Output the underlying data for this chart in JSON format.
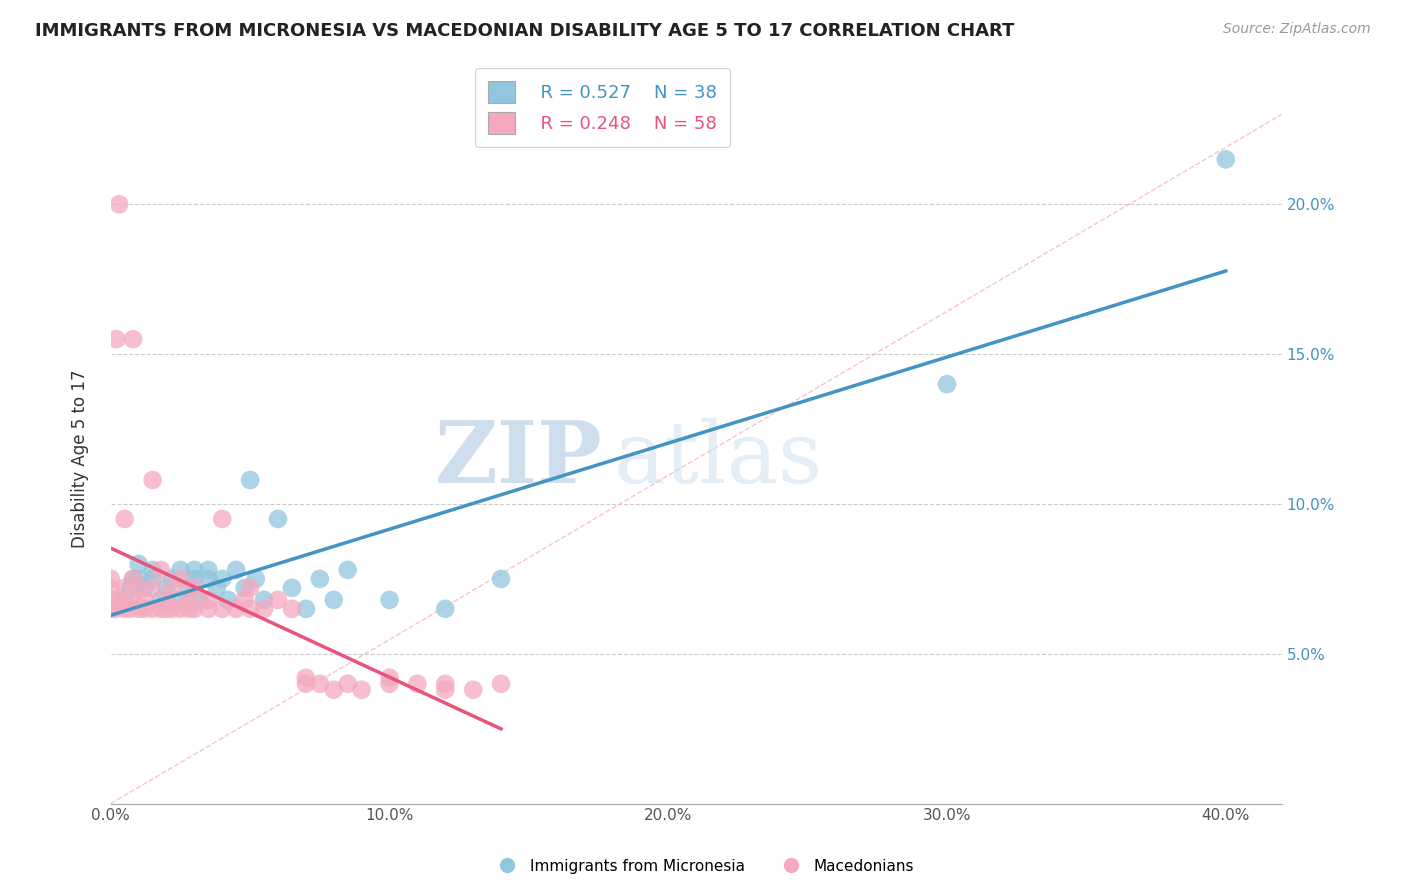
{
  "title": "IMMIGRANTS FROM MICRONESIA VS MACEDONIAN DISABILITY AGE 5 TO 17 CORRELATION CHART",
  "source": "Source: ZipAtlas.com",
  "ylabel": "Disability Age 5 to 17",
  "xlim": [
    0.0,
    0.42
  ],
  "ylim": [
    0.0,
    0.23
  ],
  "xticks": [
    0.0,
    0.1,
    0.2,
    0.3,
    0.4
  ],
  "xtick_labels": [
    "0.0%",
    "10.0%",
    "20.0%",
    "30.0%",
    "40.0%"
  ],
  "yticks": [
    0.0,
    0.05,
    0.1,
    0.15,
    0.2
  ],
  "ytick_labels_left": [
    "",
    "",
    "",
    "",
    ""
  ],
  "ytick_labels_right": [
    "",
    "5.0%",
    "10.0%",
    "15.0%",
    "20.0%"
  ],
  "legend_r1": "R = 0.527",
  "legend_n1": "N = 38",
  "legend_r2": "R = 0.248",
  "legend_n2": "N = 58",
  "blue_color": "#92c5de",
  "pink_color": "#f4a9be",
  "blue_line_color": "#4393c3",
  "pink_line_color": "#e8547a",
  "ref_line_color": "#f4a9be",
  "watermark_zip": "ZIP",
  "watermark_atlas": "atlas",
  "blue_scatter_x": [
    0.005,
    0.007,
    0.008,
    0.01,
    0.01,
    0.012,
    0.015,
    0.015,
    0.018,
    0.02,
    0.022,
    0.025,
    0.025,
    0.028,
    0.03,
    0.03,
    0.032,
    0.035,
    0.035,
    0.038,
    0.04,
    0.042,
    0.045,
    0.048,
    0.05,
    0.052,
    0.055,
    0.06,
    0.065,
    0.07,
    0.075,
    0.08,
    0.085,
    0.1,
    0.12,
    0.14,
    0.3,
    0.4
  ],
  "blue_scatter_y": [
    0.068,
    0.072,
    0.075,
    0.075,
    0.08,
    0.072,
    0.075,
    0.078,
    0.068,
    0.072,
    0.075,
    0.068,
    0.078,
    0.072,
    0.075,
    0.078,
    0.068,
    0.075,
    0.078,
    0.072,
    0.075,
    0.068,
    0.078,
    0.072,
    0.108,
    0.075,
    0.068,
    0.095,
    0.072,
    0.065,
    0.075,
    0.068,
    0.078,
    0.068,
    0.065,
    0.075,
    0.14,
    0.215
  ],
  "pink_scatter_x": [
    0.0,
    0.0,
    0.0,
    0.0,
    0.002,
    0.003,
    0.005,
    0.005,
    0.007,
    0.008,
    0.008,
    0.01,
    0.01,
    0.012,
    0.012,
    0.015,
    0.015,
    0.018,
    0.018,
    0.02,
    0.02,
    0.022,
    0.022,
    0.025,
    0.025,
    0.028,
    0.028,
    0.03,
    0.03,
    0.035,
    0.035,
    0.04,
    0.04,
    0.045,
    0.048,
    0.05,
    0.05,
    0.055,
    0.06,
    0.065,
    0.07,
    0.07,
    0.075,
    0.08,
    0.085,
    0.09,
    0.1,
    0.1,
    0.11,
    0.12,
    0.12,
    0.13,
    0.14,
    0.015,
    0.005,
    0.003,
    0.002,
    0.008
  ],
  "pink_scatter_y": [
    0.065,
    0.068,
    0.072,
    0.075,
    0.065,
    0.068,
    0.065,
    0.072,
    0.065,
    0.068,
    0.075,
    0.065,
    0.072,
    0.065,
    0.068,
    0.065,
    0.072,
    0.065,
    0.078,
    0.065,
    0.068,
    0.065,
    0.072,
    0.065,
    0.075,
    0.065,
    0.068,
    0.065,
    0.072,
    0.065,
    0.068,
    0.065,
    0.095,
    0.065,
    0.068,
    0.065,
    0.072,
    0.065,
    0.068,
    0.065,
    0.04,
    0.042,
    0.04,
    0.038,
    0.04,
    0.038,
    0.04,
    0.042,
    0.04,
    0.038,
    0.04,
    0.038,
    0.04,
    0.108,
    0.095,
    0.2,
    0.155,
    0.155
  ]
}
